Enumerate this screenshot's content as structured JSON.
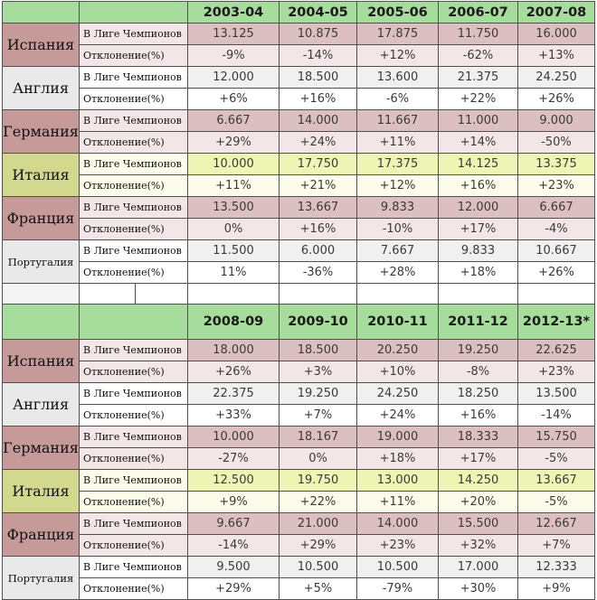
{
  "row_labels": {
    "in_cl": "В Лиге Чемпионов",
    "deviation": "Отклонение(%)"
  },
  "blocks": [
    {
      "seasons": [
        "2003-04",
        "2004-05",
        "2005-06",
        "2006-07",
        "2007-08"
      ],
      "countries": [
        {
          "name": "Испания",
          "theme": "red",
          "cl": [
            "13.125",
            "10.875",
            "17.875",
            "11.750",
            "16.000"
          ],
          "dev": [
            "-9%",
            "-14%",
            "+12%",
            "-62%",
            "+13%"
          ]
        },
        {
          "name": "Англия",
          "theme": "gray",
          "cl": [
            "12.000",
            "18.500",
            "13.600",
            "21.375",
            "24.250"
          ],
          "dev": [
            "+6%",
            "+16%",
            "-6%",
            "+22%",
            "+26%"
          ]
        },
        {
          "name": "Германия",
          "theme": "red",
          "cl": [
            "6.667",
            "14.000",
            "11.667",
            "11.000",
            "9.000"
          ],
          "dev": [
            "+29%",
            "+24%",
            "+11%",
            "+14%",
            "-50%"
          ]
        },
        {
          "name": "Италия",
          "theme": "yellow",
          "cl": [
            "10.000",
            "17.750",
            "17.375",
            "14.125",
            "13.375"
          ],
          "dev": [
            "+11%",
            "+21%",
            "+12%",
            "+16%",
            "+23%"
          ]
        },
        {
          "name": "Франция",
          "theme": "red",
          "cl": [
            "13.500",
            "13.667",
            "9.833",
            "12.000",
            "6.667"
          ],
          "dev": [
            "0%",
            "+16%",
            "-10%",
            "+17%",
            "-4%"
          ]
        },
        {
          "name": "Португалия",
          "theme": "gray",
          "small": true,
          "cl": [
            "11.500",
            "6.000",
            "7.667",
            "9.833",
            "10.667"
          ],
          "dev": [
            "11%",
            "-36%",
            "+28%",
            "+18%",
            "+26%"
          ]
        }
      ]
    },
    {
      "seasons": [
        "2008-09",
        "2009-10",
        "2010-11",
        "2011-12",
        "2012-13*"
      ],
      "countries": [
        {
          "name": "Испания",
          "theme": "red",
          "cl": [
            "18.000",
            "18.500",
            "20.250",
            "19.250",
            "22.625"
          ],
          "dev": [
            "+26%",
            "+3%",
            "+10%",
            "-8%",
            "+23%"
          ]
        },
        {
          "name": "Англия",
          "theme": "gray",
          "cl": [
            "22.375",
            "19.250",
            "24.250",
            "18.250",
            "13.500"
          ],
          "dev": [
            "+33%",
            "+7%",
            "+24%",
            "+16%",
            "-14%"
          ]
        },
        {
          "name": "Германия",
          "theme": "red",
          "cl": [
            "10.000",
            "18.167",
            "19.000",
            "18.333",
            "15.750"
          ],
          "dev": [
            "-27%",
            "0%",
            "+18%",
            "+17%",
            "-5%"
          ]
        },
        {
          "name": "Италия",
          "theme": "yellow",
          "cl": [
            "12.500",
            "19.750",
            "13.000",
            "14.250",
            "13.667"
          ],
          "dev": [
            "+9%",
            "+22%",
            "+11%",
            "+20%",
            "-5%"
          ]
        },
        {
          "name": "Франция",
          "theme": "red",
          "cl": [
            "9.667",
            "21.000",
            "14.000",
            "15.500",
            "12.667"
          ],
          "dev": [
            "-14%",
            "+29%",
            "+23%",
            "+32%",
            "+7%"
          ]
        },
        {
          "name": "Португалия",
          "theme": "gray",
          "small": true,
          "cl": [
            "9.500",
            "10.500",
            "10.500",
            "17.000",
            "12.333"
          ],
          "dev": [
            "+29%",
            "+5%",
            "-79%",
            "+30%",
            "+9%"
          ]
        }
      ]
    }
  ]
}
